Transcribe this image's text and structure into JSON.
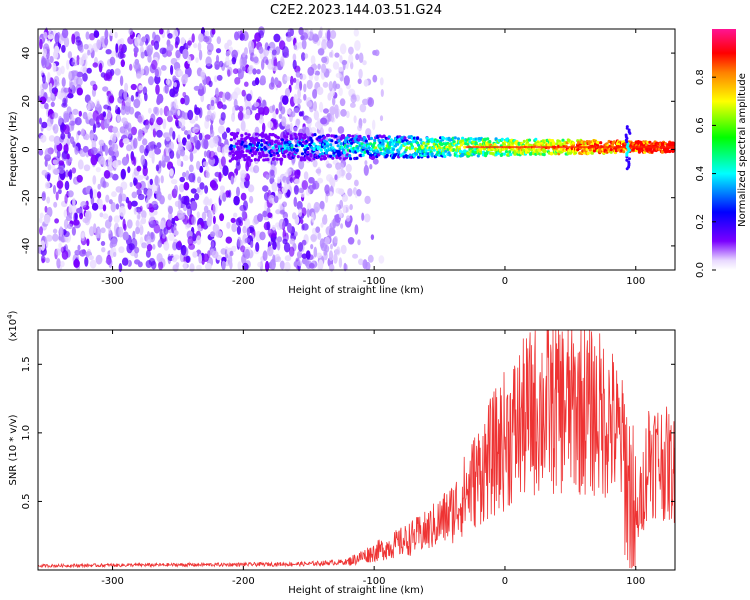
{
  "title": "C2E2.2023.144.03.51.G24",
  "chart_data": [
    {
      "type": "heatmap",
      "xlabel": "Height of straight line (km)",
      "ylabel": "Frequency (Hz)",
      "xlim": [
        -357,
        130
      ],
      "ylim": [
        -50,
        50
      ],
      "xticks": [
        -300,
        -200,
        -100,
        0,
        100
      ],
      "yticks": [
        -40,
        -20,
        0,
        20,
        40
      ],
      "colorbar": {
        "label": "Normalized spectral amplitude",
        "range": [
          0.0,
          1.0
        ],
        "ticks": [
          0.0,
          0.2,
          0.4,
          0.6,
          0.8
        ],
        "colormap": [
          "#ffffff",
          "#7a00ff",
          "#0000ff",
          "#00ffff",
          "#00ff00",
          "#ffff00",
          "#ff8000",
          "#ff0000",
          "#ff1493"
        ]
      },
      "features": {
        "noise_region_x": [
          -357,
          -140
        ],
        "signal_start_x": -210,
        "signal_center_freq": 1,
        "signal_peak_x": [
          40,
          90
        ]
      }
    },
    {
      "type": "line",
      "xlabel": "Height of straight line (km)",
      "ylabel": "SNR (10 * v/v)",
      "exponent_label": "(x10",
      "exponent_sup": "4",
      "exponent_close": ")",
      "xlim": [
        -357,
        130
      ],
      "ylim": [
        0,
        1.75
      ],
      "xticks": [
        -300,
        -200,
        -100,
        0,
        100
      ],
      "yticks": [
        0.5,
        1.0,
        1.5
      ],
      "color": "#ee3333",
      "series": [
        {
          "x": [
            -357,
            -300,
            -200,
            -150,
            -120,
            -100,
            -80,
            -60,
            -40,
            -20,
            0,
            20,
            40,
            60,
            80,
            90,
            95,
            100,
            110,
            120,
            130
          ],
          "values": [
            0.03,
            0.035,
            0.04,
            0.045,
            0.06,
            0.13,
            0.2,
            0.28,
            0.42,
            0.7,
            0.95,
            1.15,
            1.2,
            1.18,
            1.1,
            0.9,
            0.55,
            0.3,
            0.85,
            0.8,
            0.72
          ]
        }
      ]
    }
  ]
}
